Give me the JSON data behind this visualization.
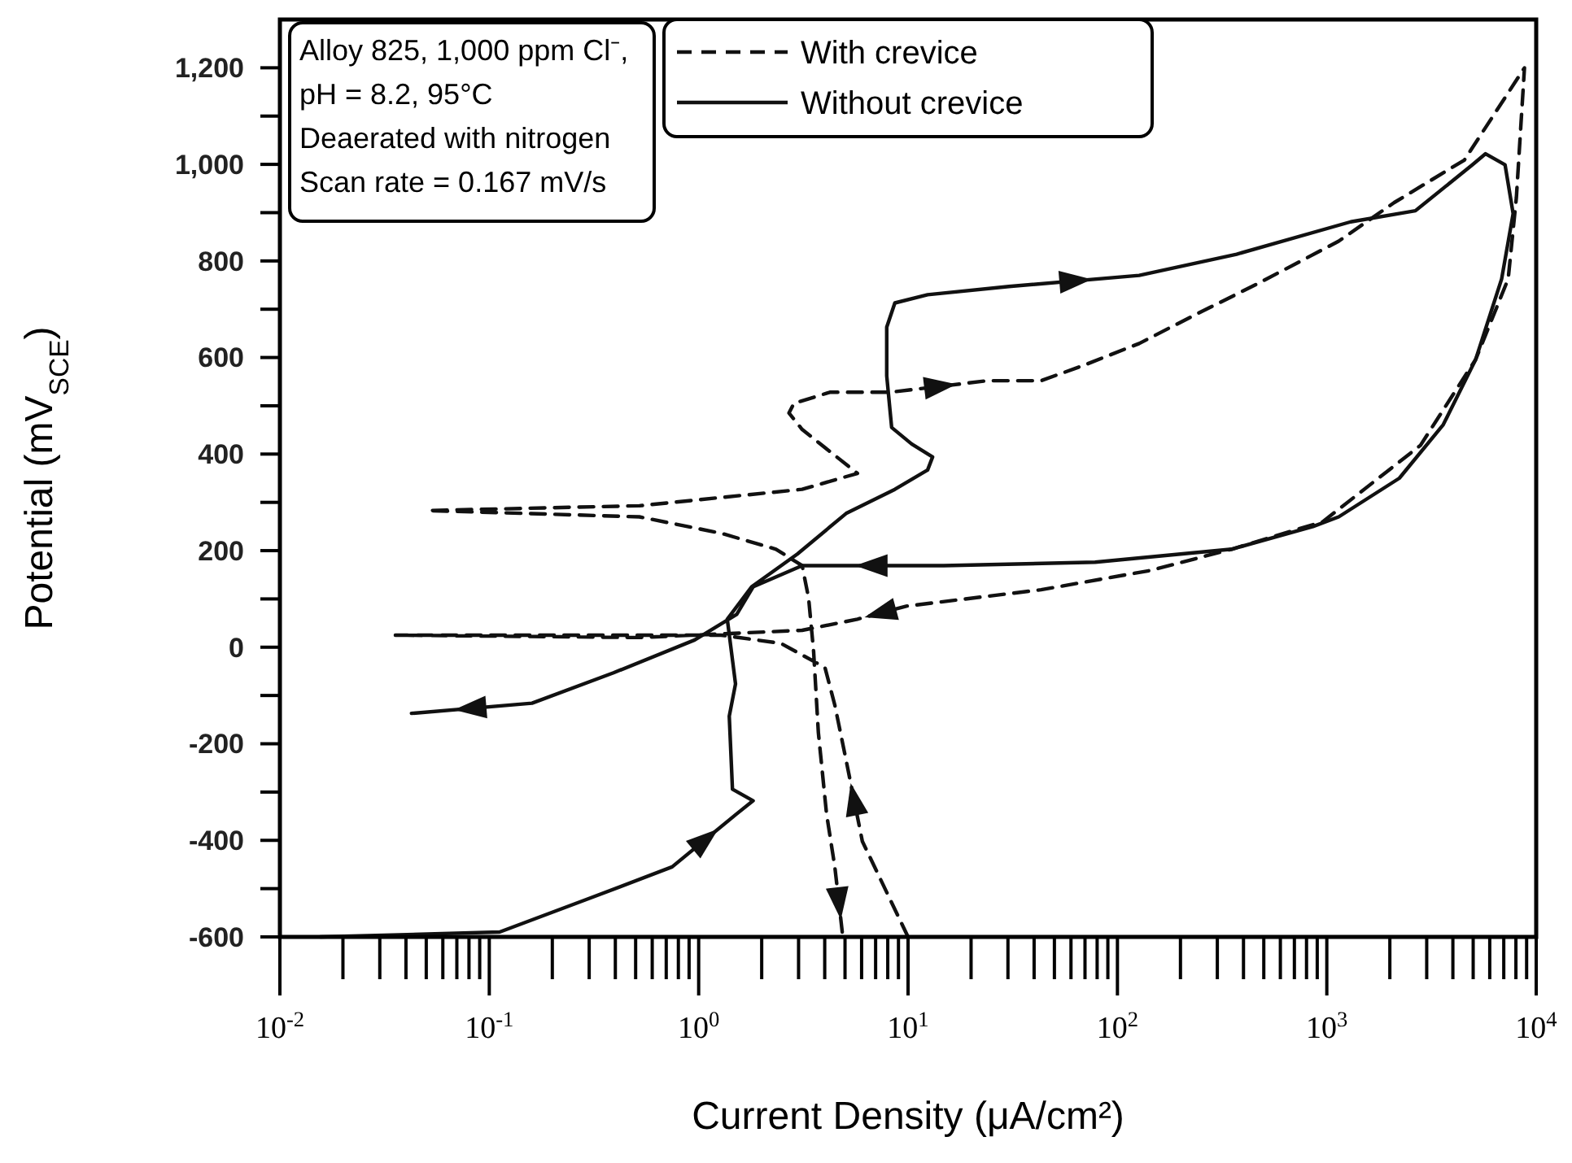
{
  "chart_data": {
    "type": "line",
    "xlabel": "Current Density (μA/cm²)",
    "ylabel": "Potential (mV$_{SCE}$)",
    "log": "x",
    "legend": "top",
    "xlim": [
      0.01,
      10000
    ],
    "ylim": [
      -600,
      1300
    ],
    "xticks": [
      {
        "value": 0.01,
        "label": "10$^{-2}$"
      },
      {
        "value": 0.1,
        "label": "10$^{-1}$"
      },
      {
        "value": 1,
        "label": "10$^{0}$"
      },
      {
        "value": 10,
        "label": "10$^{1}$"
      },
      {
        "value": 100,
        "label": "10$^{2}$"
      },
      {
        "value": 1000,
        "label": "10$^{3}$"
      },
      {
        "value": 10000,
        "label": "10$^{4}$"
      }
    ],
    "yticks": [
      -600,
      {
        "value": -500,
        "label": null
      },
      -400,
      {
        "value": -300,
        "label": null
      },
      -200,
      {
        "value": -100,
        "label": null
      },
      0,
      {
        "value": 100,
        "label": null
      },
      200,
      {
        "value": 300,
        "label": null
      },
      400,
      {
        "value": 500,
        "label": null
      },
      600,
      {
        "value": 700,
        "label": null
      },
      800,
      {
        "value": 900,
        "label": null
      },
      {
        "value": 1000,
        "label": "1,000"
      },
      {
        "value": 1100,
        "label": null
      },
      {
        "value": 1200,
        "label": "1,200"
      }
    ],
    "annotations": [
      "Alloy 825, 1,000 ppm Cl⁻,",
      "pH = 8.2, 95°C",
      "Deaerated with nitrogen",
      "Scan rate = 0.167 mV/s"
    ],
    "series": [
      {
        "name": "With crevice",
        "color": "#111111",
        "line_style": "dashed",
        "x": [
          10.0,
          6.05,
          5.06,
          4.47,
          4.01,
          2.47,
          1.28,
          0.521,
          0.0356,
          0.521,
          3.12,
          5.73,
          9.8,
          43.2,
          144,
          351,
          957,
          2800,
          5140,
          7350,
          8040,
          8790,
          4540,
          2100,
          1140,
          468,
          229,
          127,
          70.2,
          43.2,
          24.0,
          8.2,
          4.23,
          2.85,
          2.7,
          3.12,
          5.73,
          3.12,
          0.521,
          0.0509,
          0.521,
          1.28,
          2.34,
          3.12,
          3.35,
          3.54,
          3.73,
          4.08,
          4.47,
          4.88
        ],
        "values": [
          -600,
          -402,
          -234,
          -120,
          -42,
          8,
          25,
          25,
          25,
          20,
          35,
          58,
          85,
          119,
          159,
          203,
          260,
          418,
          596,
          763,
          931,
          1200,
          1009,
          921,
          841,
          753,
          686,
          629,
          585,
          552,
          552,
          528,
          528,
          505,
          485,
          451,
          360,
          327,
          293,
          283,
          270,
          236,
          203,
          169,
          102,
          -9,
          -177,
          -345,
          -455,
          -600
        ]
      },
      {
        "name": "Without crevice",
        "color": "#111111",
        "line_style": "solid",
        "x": [
          0.0156,
          0.112,
          0.289,
          0.747,
          1.52,
          1.82,
          1.45,
          1.4,
          1.5,
          1.37,
          1.79,
          2.96,
          5.06,
          8.65,
          12.4,
          13.1,
          10.4,
          8.35,
          7.91,
          7.91,
          8.65,
          12.4,
          30.3,
          127,
          371,
          1300,
          2650,
          4950,
          5730,
          7100,
          7760,
          6840,
          5140,
          3600,
          2220,
          1140,
          859,
          351,
          78.2,
          14.8,
          3.12,
          1.82,
          1.52,
          0.957,
          0.392,
          0.16,
          0.0425
        ],
        "values": [
          -600,
          -590,
          -523,
          -455,
          -345,
          -318,
          -294,
          -143,
          -76,
          58,
          125,
          193,
          277,
          327,
          367,
          394,
          421,
          455,
          562,
          663,
          713,
          730,
          747,
          770,
          814,
          881,
          904,
          999,
          1022,
          999,
          898,
          763,
          596,
          461,
          350,
          270,
          250,
          203,
          176,
          169,
          169,
          125,
          68,
          15,
          -53,
          -116,
          -137
        ]
      }
    ]
  }
}
